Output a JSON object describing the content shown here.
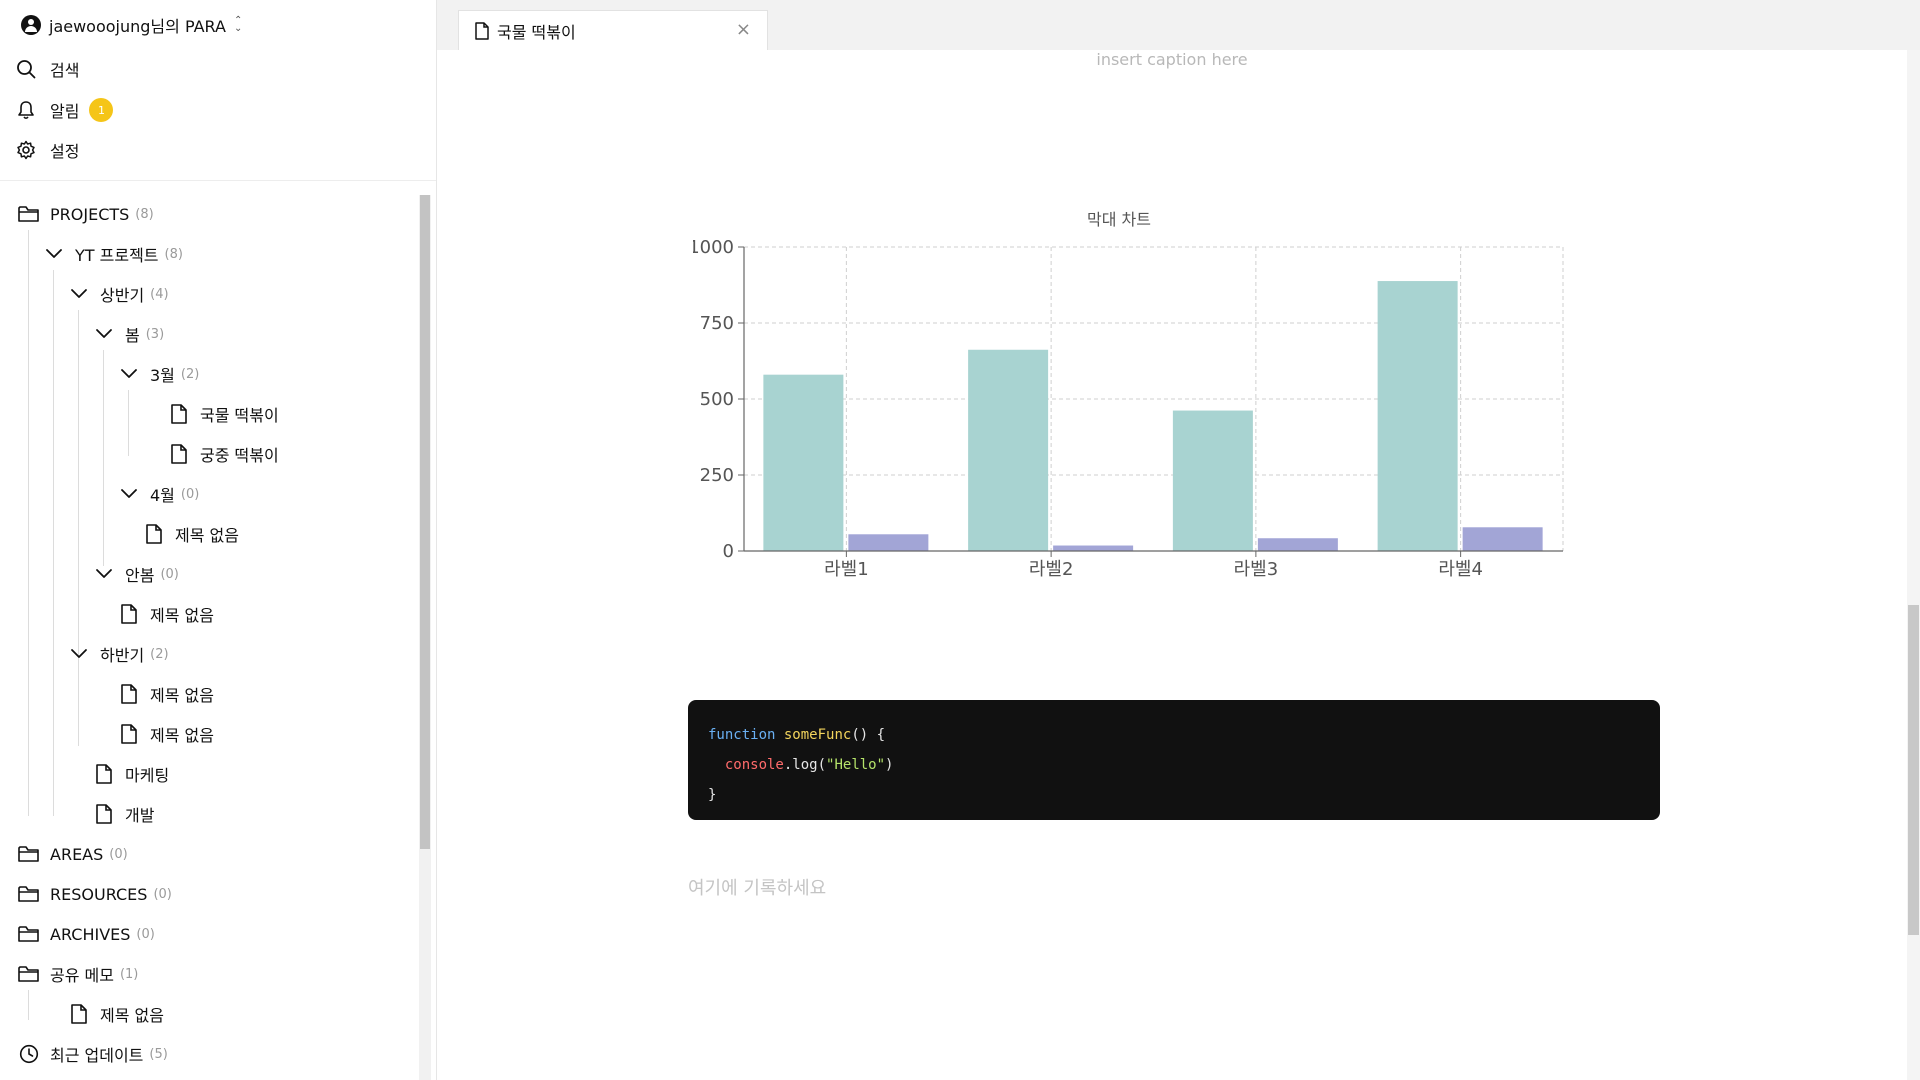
{
  "workspace": {
    "name": "jaewooojung님의 PARA"
  },
  "nav": {
    "search": "검색",
    "alerts": "알림",
    "alerts_badge": "1",
    "settings": "설정"
  },
  "tree": [
    {
      "label": "PROJECTS",
      "count": "(8)",
      "icon": "folder-icon"
    },
    {
      "label": "YT 프로젝트",
      "count": "(8)",
      "icon": "chevron-down-icon"
    },
    {
      "label": "상반기",
      "count": "(4)",
      "icon": "chevron-down-icon"
    },
    {
      "label": "봄",
      "count": "(3)",
      "icon": "chevron-down-icon"
    },
    {
      "label": "3월",
      "count": "(2)",
      "icon": "chevron-down-icon"
    },
    {
      "label": "국물 떡볶이",
      "count": "",
      "icon": "document-icon"
    },
    {
      "label": "궁중 떡볶이",
      "count": "",
      "icon": "document-icon"
    },
    {
      "label": "4월",
      "count": "(0)",
      "icon": "chevron-down-icon"
    },
    {
      "label": "제목 없음",
      "count": "",
      "icon": "document-icon"
    },
    {
      "label": "안봄",
      "count": "(0)",
      "icon": "chevron-down-icon"
    },
    {
      "label": "제목 없음",
      "count": "",
      "icon": "document-icon"
    },
    {
      "label": "하반기",
      "count": "(2)",
      "icon": "chevron-down-icon"
    },
    {
      "label": "제목 없음",
      "count": "",
      "icon": "document-icon"
    },
    {
      "label": "제목 없음",
      "count": "",
      "icon": "document-icon"
    },
    {
      "label": "마케팅",
      "count": "",
      "icon": "document-icon"
    },
    {
      "label": "개발",
      "count": "",
      "icon": "document-icon"
    },
    {
      "label": "AREAS",
      "count": "(0)",
      "icon": "folder-icon"
    },
    {
      "label": "RESOURCES",
      "count": "(0)",
      "icon": "folder-icon"
    },
    {
      "label": "ARCHIVES",
      "count": "(0)",
      "icon": "folder-icon"
    },
    {
      "label": "공유 메모",
      "count": "(1)",
      "icon": "folder-icon"
    },
    {
      "label": "제목 없음",
      "count": "",
      "icon": "document-icon"
    },
    {
      "label": "최근 업데이트",
      "count": "(5)",
      "icon": "clock-icon"
    }
  ],
  "tab": {
    "title": "국물 떡볶이",
    "close": "×"
  },
  "editor": {
    "caption": "insert caption here",
    "code": {
      "line1_kw": "function",
      "line1_fn": "someFunc",
      "line1_rest": "() {",
      "line2_obj": "console",
      "line2_method": ".log(",
      "line2_str": "\"Hello\"",
      "line2_end": ")",
      "line3": "}"
    },
    "placeholder": "여기에 기록하세요"
  },
  "colors": {
    "bar_primary": "#a8d3d1",
    "bar_secondary": "#a2a5d6",
    "badge": "#f5c518",
    "code_bg": "#111111"
  },
  "chart_data": {
    "type": "bar",
    "title": "막대 차트",
    "categories": [
      "라벨1",
      "라벨2",
      "라벨3",
      "라벨4"
    ],
    "series": [
      {
        "values": [
          580,
          662,
          462,
          888
        ]
      },
      {
        "values": [
          55,
          18,
          42,
          78
        ]
      }
    ],
    "ylim": [
      0,
      1000
    ],
    "yticks": [
      0,
      250,
      500,
      750,
      1000
    ],
    "grid": true
  }
}
